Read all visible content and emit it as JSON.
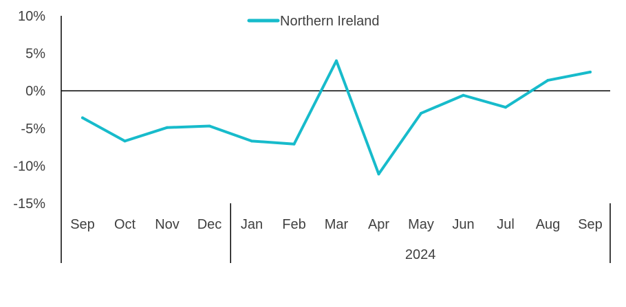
{
  "chart_data": {
    "type": "line",
    "legend": {
      "position": "top-center"
    },
    "grid": false,
    "ylim": [
      -15,
      10
    ],
    "y_ticks": [
      10,
      5,
      0,
      -5,
      -10,
      -15
    ],
    "y_tick_labels": [
      "10%",
      "5%",
      "0%",
      "-5%",
      "-10%",
      "-15%"
    ],
    "categories": [
      "Sep",
      "Oct",
      "Nov",
      "Dec",
      "Jan",
      "Feb",
      "Mar",
      "Apr",
      "May",
      "Jun",
      "Jul",
      "Aug",
      "Sep"
    ],
    "year_groups": [
      {
        "label": "",
        "start": 0,
        "end": 3
      },
      {
        "label": "2024",
        "start": 4,
        "end": 12
      }
    ],
    "series": [
      {
        "name": "Northern Ireland",
        "color": "#17BBCB",
        "values": [
          -3.6,
          -6.7,
          -4.9,
          -4.7,
          -6.7,
          -7.1,
          4.0,
          -11.1,
          -3.0,
          -0.6,
          -2.2,
          1.4,
          2.5
        ]
      }
    ]
  }
}
